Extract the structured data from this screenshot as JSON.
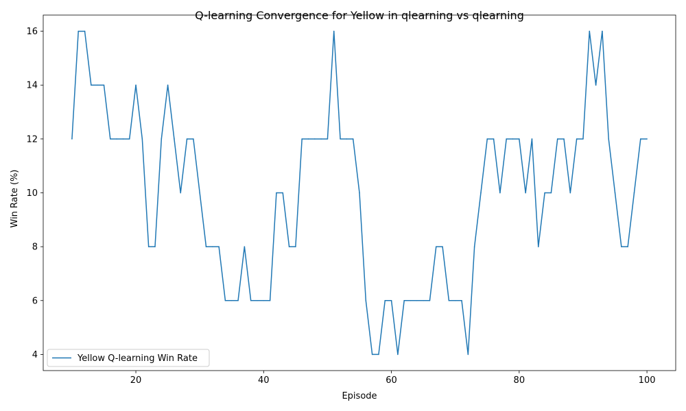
{
  "chart_data": {
    "type": "line",
    "title": "Q-learning Convergence for Yellow in qlearning vs qlearning",
    "xlabel": "Episode",
    "ylabel": "Win Rate (%)",
    "xlim": [
      5.5,
      104.5
    ],
    "ylim": [
      3.4,
      16.6
    ],
    "xticks": [
      20,
      40,
      60,
      80,
      100
    ],
    "yticks": [
      4,
      6,
      8,
      10,
      12,
      14,
      16
    ],
    "grid": false,
    "legend_position": "lower-left",
    "series": [
      {
        "name": "Yellow Q-learning Win Rate",
        "color": "#1f77b4",
        "x": [
          10,
          11,
          12,
          13,
          14,
          15,
          16,
          17,
          18,
          19,
          20,
          21,
          22,
          23,
          24,
          25,
          26,
          27,
          28,
          29,
          30,
          31,
          32,
          33,
          34,
          35,
          36,
          37,
          38,
          39,
          40,
          41,
          42,
          43,
          44,
          45,
          46,
          47,
          48,
          49,
          50,
          51,
          52,
          53,
          54,
          55,
          56,
          57,
          58,
          59,
          60,
          61,
          62,
          63,
          64,
          65,
          66,
          67,
          68,
          69,
          70,
          71,
          72,
          73,
          74,
          75,
          76,
          77,
          78,
          79,
          80,
          81,
          82,
          83,
          84,
          85,
          86,
          87,
          88,
          89,
          90,
          91,
          92,
          93,
          94,
          95,
          96,
          97,
          98,
          99,
          100
        ],
        "y": [
          12,
          16,
          16,
          14,
          14,
          14,
          12,
          12,
          12,
          12,
          14,
          12,
          8,
          8,
          12,
          14,
          12,
          10,
          12,
          12,
          10,
          8,
          8,
          8,
          6,
          6,
          6,
          8,
          6,
          6,
          6,
          6,
          10,
          10,
          8,
          8,
          12,
          12,
          12,
          12,
          12,
          16,
          12,
          12,
          12,
          10,
          6,
          4,
          4,
          6,
          6,
          4,
          6,
          6,
          6,
          6,
          6,
          8,
          8,
          6,
          6,
          6,
          4,
          8,
          10,
          12,
          12,
          10,
          12,
          12,
          12,
          10,
          12,
          8,
          10,
          10,
          12,
          12,
          10,
          12,
          12,
          16,
          14,
          16,
          12,
          10,
          8,
          8,
          10,
          12,
          12
        ]
      }
    ]
  }
}
